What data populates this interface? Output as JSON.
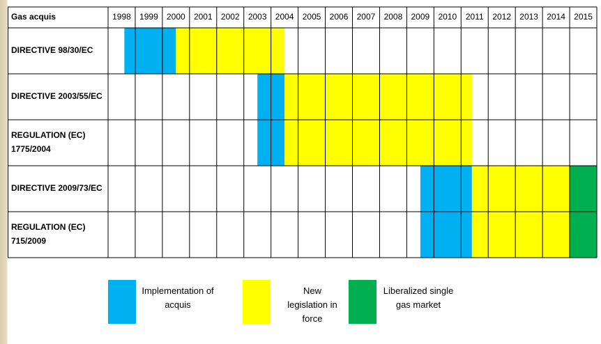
{
  "table": {
    "header": "Gas acquis",
    "years": [
      "1998",
      "1999",
      "2000",
      "2001",
      "2002",
      "2003",
      "2004",
      "2005",
      "2006",
      "2007",
      "2008",
      "2009",
      "2010",
      "2011",
      "2012",
      "2013",
      "2014",
      "2015"
    ],
    "rows": [
      {
        "label": [
          "DIRECTIVE 98/30/EC"
        ],
        "spans": [
          {
            "phase": 0,
            "from": 1998.6,
            "to": 2000.5
          },
          {
            "phase": 1,
            "from": 2000.5,
            "to": 2004.5
          }
        ]
      },
      {
        "label": [
          "DIRECTIVE 2003/55/EC"
        ],
        "spans": [
          {
            "phase": 0,
            "from": 2003.5,
            "to": 2004.5
          },
          {
            "phase": 1,
            "from": 2004.5,
            "to": 2011.4
          }
        ]
      },
      {
        "label": [
          "REGULATION (EC)",
          "1775/2004"
        ],
        "spans": [
          {
            "phase": 0,
            "from": 2003.5,
            "to": 2004.5
          },
          {
            "phase": 1,
            "from": 2004.5,
            "to": 2011.4
          }
        ]
      },
      {
        "label": [
          "DIRECTIVE 2009/73/EC"
        ],
        "spans": [
          {
            "phase": 0,
            "from": 2009.5,
            "to": 2011.4
          },
          {
            "phase": 1,
            "from": 2011.4,
            "to": 2015
          },
          {
            "phase": 2,
            "from": 2015,
            "to": 2016
          }
        ]
      },
      {
        "label": [
          "REGULATION (EC)",
          "715/2009"
        ],
        "spans": [
          {
            "phase": 0,
            "from": 2009.5,
            "to": 2011.4
          },
          {
            "phase": 1,
            "from": 2011.4,
            "to": 2015
          },
          {
            "phase": 2,
            "from": 2015,
            "to": 2016
          }
        ]
      }
    ]
  },
  "legend": [
    {
      "color": "#00b0f0",
      "label": [
        "Implementation of",
        "acquis"
      ]
    },
    {
      "color": "#ffff00",
      "label": [
        "New",
        "legislation in",
        "force"
      ]
    },
    {
      "color": "#00b050",
      "label": [
        "Liberalized single",
        "gas market"
      ]
    }
  ]
}
